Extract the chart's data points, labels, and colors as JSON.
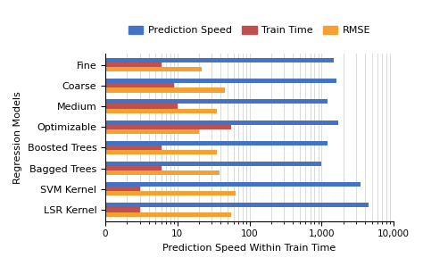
{
  "categories": [
    "LSR Kernel",
    "SVM Kernel",
    "Bagged Trees",
    "Boosted Trees",
    "Optimizable",
    "Medium",
    "Coarse",
    "Fine"
  ],
  "series": {
    "Prediction Speed": [
      4500,
      3500,
      1000,
      1200,
      1700,
      1200,
      1600,
      1500
    ],
    "Train Time": [
      3,
      3,
      6,
      6,
      55,
      10,
      9,
      6
    ],
    "RMSE": [
      55,
      65,
      38,
      35,
      20,
      35,
      45,
      22
    ]
  },
  "colors": {
    "Prediction Speed": "#4472C4",
    "Train Time": "#C0504D",
    "RMSE": "#F4A033"
  },
  "xlabel": "Prediction Speed Within Train Time",
  "ylabel": "Regression Models",
  "legend_labels": [
    "Prediction Speed",
    "Train Time",
    "RMSE"
  ],
  "bar_height": 0.22,
  "grid_color": "#CCCCCC"
}
